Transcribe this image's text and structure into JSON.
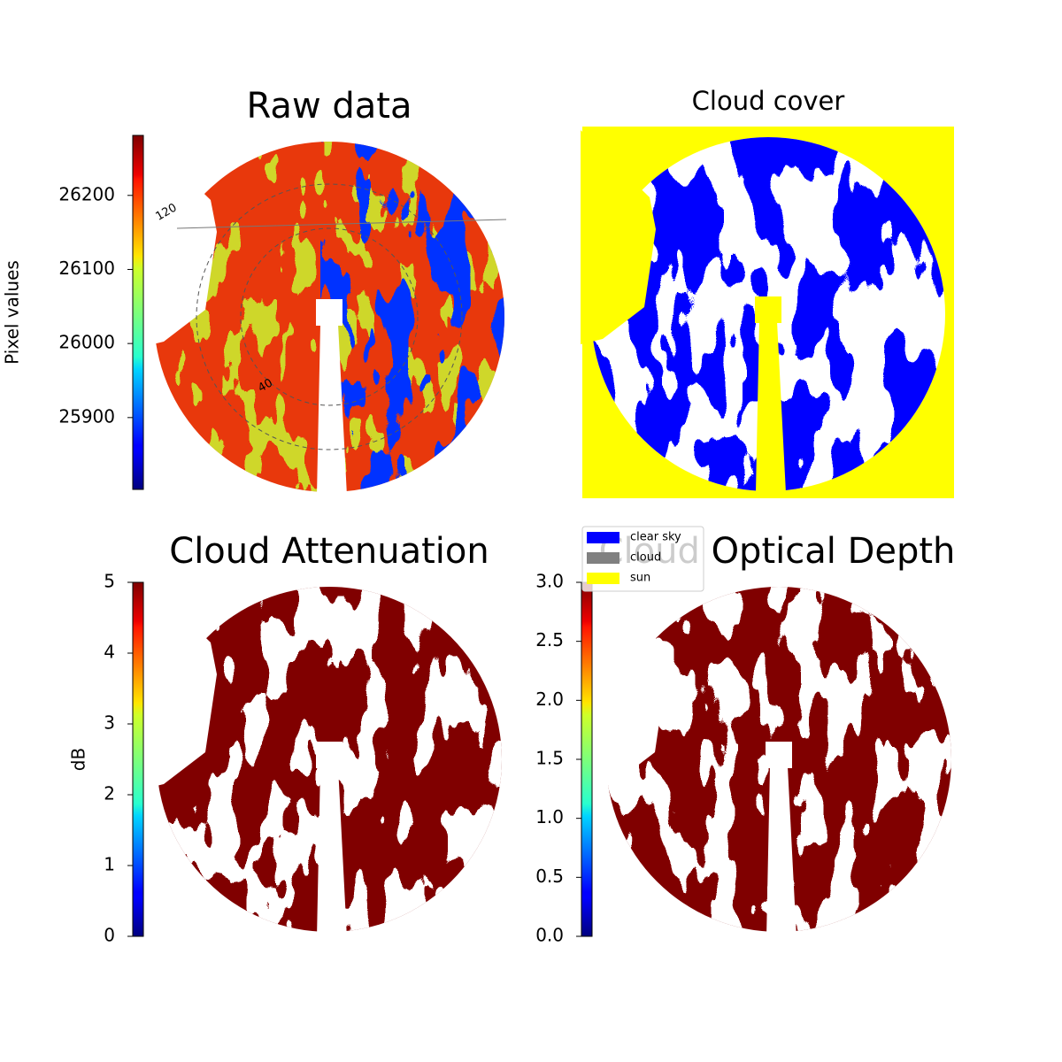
{
  "chart_data": [
    {
      "type": "image",
      "title": "Raw data",
      "annotations": [
        "120",
        "40"
      ],
      "colorbar": {
        "label": "Pixel values",
        "cmap": "jet",
        "lim": [
          25803,
          26281
        ],
        "ticks": [
          25900,
          26000,
          26100,
          26200
        ]
      }
    },
    {
      "type": "image",
      "title": "Cloud cover",
      "legend": {
        "position": "lower left",
        "series": [
          {
            "name": "clear sky",
            "color": "#0000ff"
          },
          {
            "name": "cloud",
            "color": "#808080"
          },
          {
            "name": "sun",
            "color": "#ffff00"
          }
        ]
      }
    },
    {
      "type": "image",
      "title": "Cloud Attenuation",
      "colorbar": {
        "label": "dB",
        "cmap": "jet",
        "lim": [
          0,
          5
        ],
        "ticks": [
          0,
          1,
          2,
          3,
          4,
          5
        ]
      }
    },
    {
      "type": "image",
      "title": "Cloud Optical Depth",
      "colorbar": {
        "cmap": "jet",
        "lim": [
          0,
          3
        ],
        "ticks": [
          {
            "value": 0,
            "label": "0.0"
          },
          0.5,
          {
            "value": 1,
            "label": "1.0"
          },
          1.5,
          {
            "value": 2,
            "label": "2.0"
          },
          2.5,
          {
            "value": 3,
            "label": "3.0"
          }
        ]
      }
    }
  ]
}
